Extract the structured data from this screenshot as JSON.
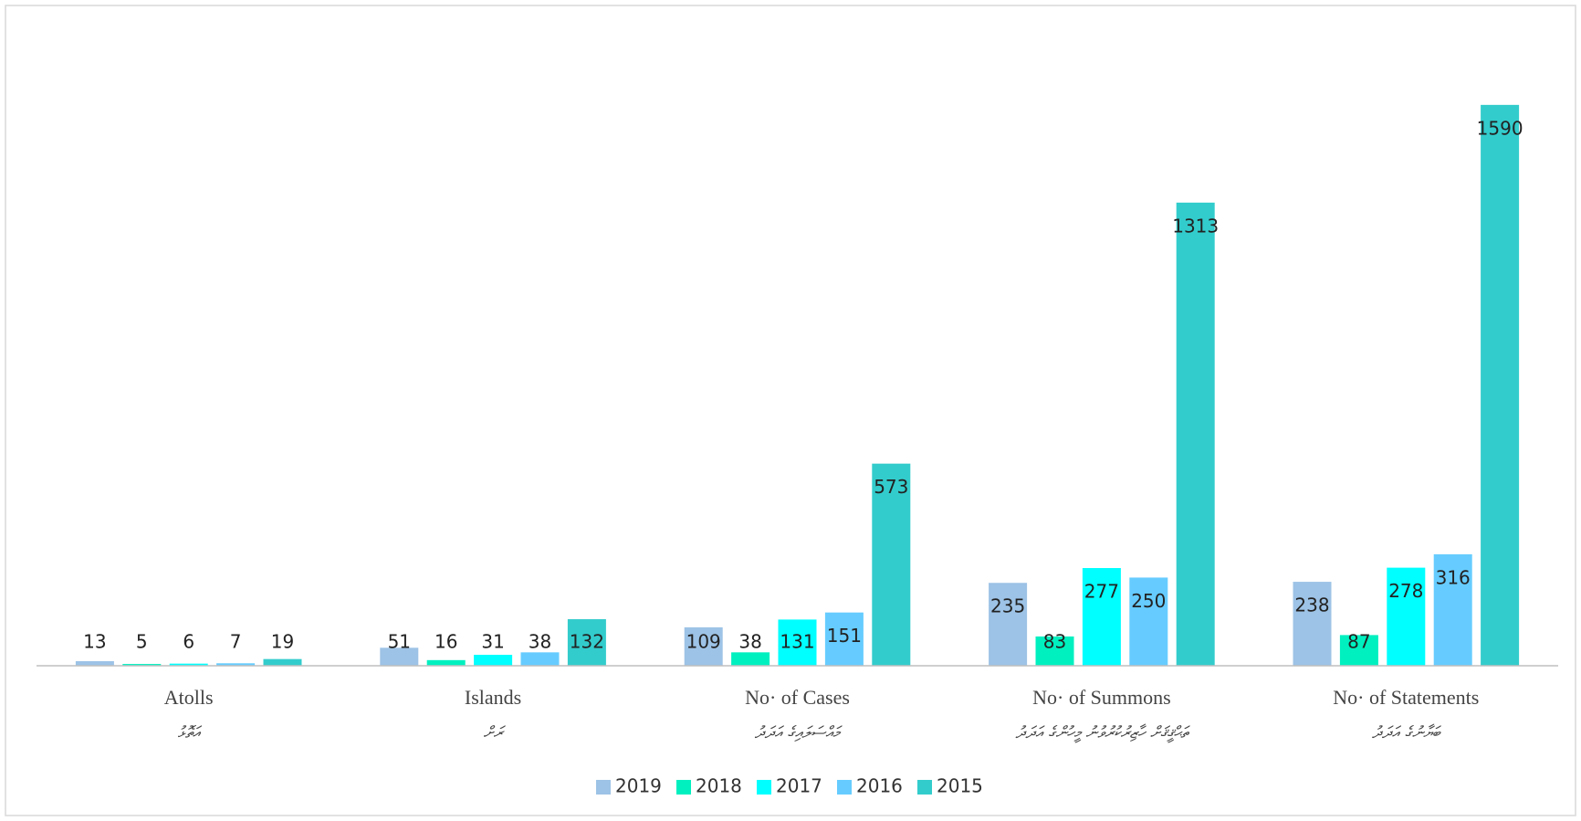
{
  "chart_data": {
    "type": "bar",
    "categories": [
      "Atolls",
      "Islands",
      "No· of Cases",
      "No· of Summons",
      "No· of Statements"
    ],
    "categories_dv": [
      "އަތޮޅު",
      "ރަށް",
      "މައްސަލައިގެ އަދަދު",
      "ތަޙްޤީޤަށް ހާޒިރުކުރުވުނު މީހުންގެ އަދަދު",
      "ބަޔާނުގެ އަދަދު"
    ],
    "series": [
      {
        "name": "2019",
        "color": "#9dc3e6",
        "values": [
          13,
          51,
          109,
          235,
          238
        ]
      },
      {
        "name": "2018",
        "color": "#00f0c0",
        "values": [
          5,
          16,
          38,
          83,
          87
        ]
      },
      {
        "name": "2017",
        "color": "#00ffff",
        "values": [
          6,
          31,
          131,
          277,
          278
        ]
      },
      {
        "name": "2016",
        "color": "#66ccff",
        "values": [
          7,
          38,
          151,
          250,
          316
        ]
      },
      {
        "name": "2015",
        "color": "#33cccc",
        "values": [
          19,
          132,
          573,
          1313,
          1590
        ]
      }
    ],
    "ylim": [
      0,
      1600
    ],
    "legend": "bottom"
  }
}
